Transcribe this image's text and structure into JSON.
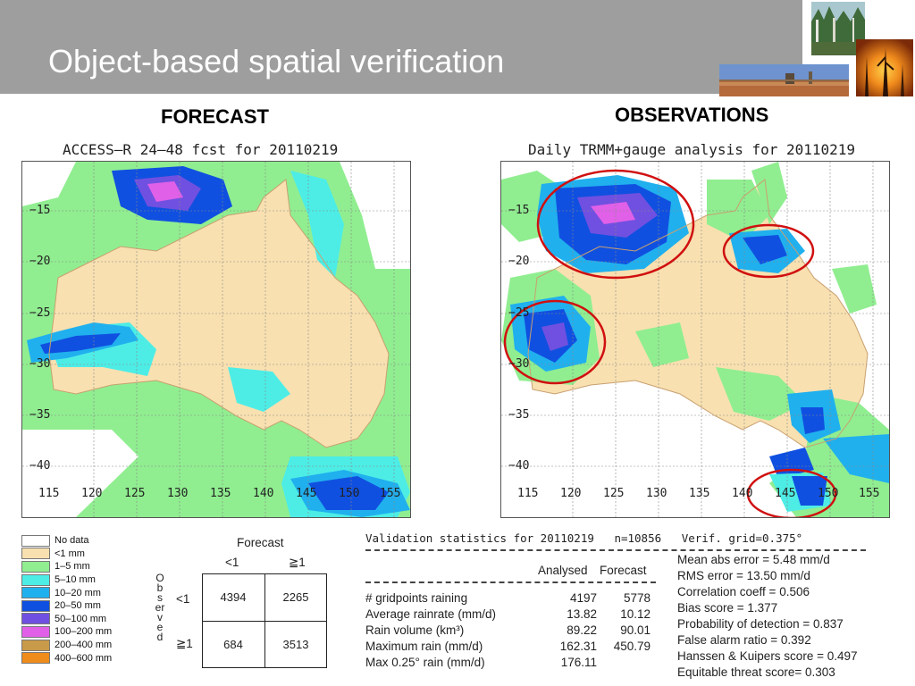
{
  "slide": {
    "title": "Object-based spatial verification"
  },
  "headings": {
    "forecast": "FORECAST",
    "observations": "OBSERVATIONS"
  },
  "maps": {
    "forecast": {
      "title": "ACCESS–R 24–48 fcst for 20110219",
      "lat_labels": [
        "−15",
        "−20",
        "−25",
        "−30",
        "−35",
        "−40"
      ],
      "lon_labels": [
        "115",
        "120",
        "125",
        "130",
        "135",
        "140",
        "145",
        "150",
        "155"
      ]
    },
    "observations": {
      "title": "Daily TRMM+gauge analysis for 20110219",
      "lat_labels": [
        "−15",
        "−20",
        "−25",
        "−30",
        "−35",
        "−40"
      ],
      "lon_labels": [
        "115",
        "120",
        "125",
        "130",
        "135",
        "140",
        "145",
        "150",
        "155"
      ]
    }
  },
  "legend": [
    {
      "label": "No data",
      "color": "#ffffff"
    },
    {
      "label": "<1 mm",
      "color": "#f8e0b0"
    },
    {
      "label": "1–5 mm",
      "color": "#90ee90"
    },
    {
      "label": "5–10 mm",
      "color": "#4dede6"
    },
    {
      "label": "10–20 mm",
      "color": "#20b0ee"
    },
    {
      "label": "20–50 mm",
      "color": "#1050e0"
    },
    {
      "label": "50–100 mm",
      "color": "#7050e0"
    },
    {
      "label": "100–200 mm",
      "color": "#e060e8"
    },
    {
      "label": "200–400 mm",
      "color": "#c89a4a"
    },
    {
      "label": "400–600 mm",
      "color": "#f08c1c"
    }
  ],
  "contingency": {
    "forecast_label": "Forecast",
    "observed_label": "Observed",
    "col_lt1": "<1",
    "col_ge1": "≧1",
    "row_lt1": "<1",
    "row_ge1": "≧1",
    "cells": {
      "a": "4394",
      "b": "2265",
      "c": "684",
      "d": "3513"
    }
  },
  "stats": {
    "header": "Validation statistics for 20110219   n=10856   Verif. grid=0.375°",
    "col_analysed": "Analysed",
    "col_forecast": "Forecast",
    "rows": [
      {
        "label": "# gridpoints raining",
        "analysed": "4197",
        "forecast": "5778"
      },
      {
        "label": "Average rainrate (mm/d)",
        "analysed": "13.82",
        "forecast": "10.12"
      },
      {
        "label": "Rain volume (km³)",
        "analysed": "89.22",
        "forecast": "90.01"
      },
      {
        "label": "Maximum rain (mm/d)",
        "analysed": "162.31",
        "forecast": "450.79"
      },
      {
        "label": "Max 0.25° rain (mm/d)",
        "analysed": "176.11",
        "forecast": ""
      }
    ],
    "scores": [
      "Mean abs error = 5.48 mm/d",
      "RMS error = 13.50 mm/d",
      "Correlation coeff = 0.506",
      "Bias score = 1.377",
      "Probability of detection = 0.837",
      "False alarm ratio = 0.392",
      "Hanssen & Kuipers score = 0.497",
      "Equitable threat score= 0.303"
    ]
  }
}
